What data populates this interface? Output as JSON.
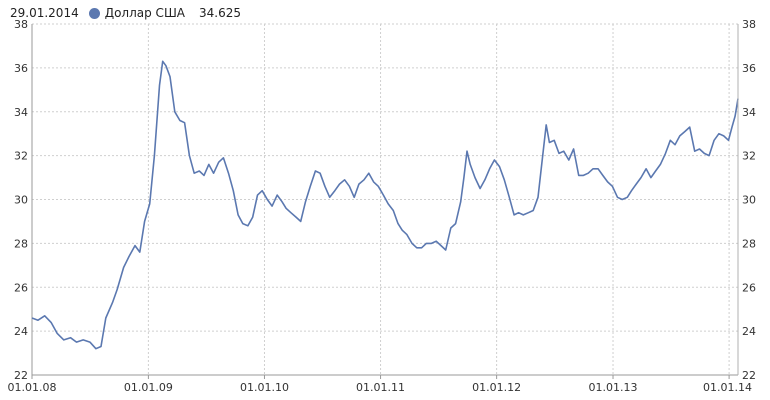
{
  "header": {
    "date": "29.01.2014",
    "series_label": "Доллар США",
    "value": "34.625"
  },
  "colors": {
    "series": "#5b78b0",
    "grid": "#cfcfcf",
    "axis": "#999999",
    "background": "#ffffff"
  },
  "chart_data": {
    "type": "line",
    "title": "",
    "xlabel": "",
    "ylabel": "",
    "ylim": [
      22,
      38
    ],
    "xlim": [
      "2008-01-01",
      "2014-01-29"
    ],
    "y_ticks": [
      "22",
      "24",
      "26",
      "28",
      "30",
      "32",
      "34",
      "36",
      "38"
    ],
    "x_ticks": [
      "01.01.08",
      "01.01.09",
      "01.01.10",
      "01.01.11",
      "01.01.12",
      "01.01.13",
      "01.01.14"
    ],
    "grid": true,
    "series": [
      {
        "name": "Доллар США",
        "points": [
          [
            "2008-01-01",
            24.6
          ],
          [
            "2008-01-20",
            24.5
          ],
          [
            "2008-02-10",
            24.7
          ],
          [
            "2008-03-01",
            24.4
          ],
          [
            "2008-03-20",
            23.9
          ],
          [
            "2008-04-10",
            23.6
          ],
          [
            "2008-05-01",
            23.7
          ],
          [
            "2008-05-20",
            23.5
          ],
          [
            "2008-06-10",
            23.6
          ],
          [
            "2008-07-01",
            23.5
          ],
          [
            "2008-07-20",
            23.2
          ],
          [
            "2008-08-05",
            23.3
          ],
          [
            "2008-08-20",
            24.6
          ],
          [
            "2008-09-10",
            25.3
          ],
          [
            "2008-09-25",
            25.9
          ],
          [
            "2008-10-15",
            26.9
          ],
          [
            "2008-11-01",
            27.4
          ],
          [
            "2008-11-20",
            27.9
          ],
          [
            "2008-12-05",
            27.6
          ],
          [
            "2008-12-20",
            29.0
          ],
          [
            "2009-01-05",
            29.8
          ],
          [
            "2009-01-20",
            32.0
          ],
          [
            "2009-02-05",
            35.2
          ],
          [
            "2009-02-15",
            36.3
          ],
          [
            "2009-02-25",
            36.1
          ],
          [
            "2009-03-10",
            35.6
          ],
          [
            "2009-03-25",
            34.0
          ],
          [
            "2009-04-10",
            33.6
          ],
          [
            "2009-04-25",
            33.5
          ],
          [
            "2009-05-10",
            32.0
          ],
          [
            "2009-05-25",
            31.2
          ],
          [
            "2009-06-10",
            31.3
          ],
          [
            "2009-06-25",
            31.1
          ],
          [
            "2009-07-10",
            31.6
          ],
          [
            "2009-07-25",
            31.2
          ],
          [
            "2009-08-10",
            31.7
          ],
          [
            "2009-08-25",
            31.9
          ],
          [
            "2009-09-10",
            31.2
          ],
          [
            "2009-09-25",
            30.4
          ],
          [
            "2009-10-10",
            29.3
          ],
          [
            "2009-10-25",
            28.9
          ],
          [
            "2009-11-10",
            28.8
          ],
          [
            "2009-11-25",
            29.2
          ],
          [
            "2009-12-10",
            30.2
          ],
          [
            "2009-12-25",
            30.4
          ],
          [
            "2010-01-10",
            30.0
          ],
          [
            "2010-01-25",
            29.7
          ],
          [
            "2010-02-10",
            30.2
          ],
          [
            "2010-02-25",
            29.9
          ],
          [
            "2010-03-10",
            29.6
          ],
          [
            "2010-03-25",
            29.4
          ],
          [
            "2010-04-10",
            29.2
          ],
          [
            "2010-04-25",
            29.0
          ],
          [
            "2010-05-10",
            29.9
          ],
          [
            "2010-05-25",
            30.6
          ],
          [
            "2010-06-10",
            31.3
          ],
          [
            "2010-06-25",
            31.2
          ],
          [
            "2010-07-10",
            30.6
          ],
          [
            "2010-07-25",
            30.1
          ],
          [
            "2010-08-10",
            30.4
          ],
          [
            "2010-08-25",
            30.7
          ],
          [
            "2010-09-10",
            30.9
          ],
          [
            "2010-09-25",
            30.6
          ],
          [
            "2010-10-10",
            30.1
          ],
          [
            "2010-10-25",
            30.7
          ],
          [
            "2010-11-10",
            30.9
          ],
          [
            "2010-11-25",
            31.2
          ],
          [
            "2010-12-10",
            30.8
          ],
          [
            "2010-12-25",
            30.6
          ],
          [
            "2011-01-10",
            30.2
          ],
          [
            "2011-01-25",
            29.8
          ],
          [
            "2011-02-10",
            29.5
          ],
          [
            "2011-02-25",
            28.9
          ],
          [
            "2011-03-10",
            28.6
          ],
          [
            "2011-03-25",
            28.4
          ],
          [
            "2011-04-10",
            28.0
          ],
          [
            "2011-04-25",
            27.8
          ],
          [
            "2011-05-10",
            27.8
          ],
          [
            "2011-05-25",
            28.0
          ],
          [
            "2011-06-10",
            28.0
          ],
          [
            "2011-06-25",
            28.1
          ],
          [
            "2011-07-10",
            27.9
          ],
          [
            "2011-07-25",
            27.7
          ],
          [
            "2011-08-10",
            28.7
          ],
          [
            "2011-08-25",
            28.9
          ],
          [
            "2011-09-10",
            29.9
          ],
          [
            "2011-09-20",
            31.0
          ],
          [
            "2011-09-30",
            32.2
          ],
          [
            "2011-10-10",
            31.6
          ],
          [
            "2011-10-25",
            31.0
          ],
          [
            "2011-11-10",
            30.5
          ],
          [
            "2011-11-25",
            30.9
          ],
          [
            "2011-12-10",
            31.4
          ],
          [
            "2011-12-25",
            31.8
          ],
          [
            "2012-01-10",
            31.5
          ],
          [
            "2012-01-25",
            30.9
          ],
          [
            "2012-02-10",
            30.1
          ],
          [
            "2012-02-25",
            29.3
          ],
          [
            "2012-03-10",
            29.4
          ],
          [
            "2012-03-25",
            29.3
          ],
          [
            "2012-04-10",
            29.4
          ],
          [
            "2012-04-25",
            29.5
          ],
          [
            "2012-05-10",
            30.1
          ],
          [
            "2012-05-25",
            32.0
          ],
          [
            "2012-06-05",
            33.4
          ],
          [
            "2012-06-15",
            32.6
          ],
          [
            "2012-06-30",
            32.7
          ],
          [
            "2012-07-15",
            32.1
          ],
          [
            "2012-07-30",
            32.2
          ],
          [
            "2012-08-15",
            31.8
          ],
          [
            "2012-08-30",
            32.3
          ],
          [
            "2012-09-15",
            31.1
          ],
          [
            "2012-09-30",
            31.1
          ],
          [
            "2012-10-15",
            31.2
          ],
          [
            "2012-10-30",
            31.4
          ],
          [
            "2012-11-15",
            31.4
          ],
          [
            "2012-11-30",
            31.1
          ],
          [
            "2012-12-15",
            30.8
          ],
          [
            "2012-12-30",
            30.6
          ],
          [
            "2013-01-15",
            30.1
          ],
          [
            "2013-01-30",
            30.0
          ],
          [
            "2013-02-15",
            30.1
          ],
          [
            "2013-02-28",
            30.4
          ],
          [
            "2013-03-15",
            30.7
          ],
          [
            "2013-03-30",
            31.0
          ],
          [
            "2013-04-15",
            31.4
          ],
          [
            "2013-04-30",
            31.0
          ],
          [
            "2013-05-15",
            31.3
          ],
          [
            "2013-05-30",
            31.6
          ],
          [
            "2013-06-15",
            32.1
          ],
          [
            "2013-06-30",
            32.7
          ],
          [
            "2013-07-15",
            32.5
          ],
          [
            "2013-07-30",
            32.9
          ],
          [
            "2013-08-15",
            33.1
          ],
          [
            "2013-08-30",
            33.3
          ],
          [
            "2013-09-15",
            32.2
          ],
          [
            "2013-09-30",
            32.3
          ],
          [
            "2013-10-15",
            32.1
          ],
          [
            "2013-10-30",
            32.0
          ],
          [
            "2013-11-15",
            32.7
          ],
          [
            "2013-11-30",
            33.0
          ],
          [
            "2013-12-15",
            32.9
          ],
          [
            "2013-12-30",
            32.7
          ],
          [
            "2014-01-10",
            33.3
          ],
          [
            "2014-01-20",
            33.8
          ],
          [
            "2014-01-29",
            34.6
          ]
        ]
      }
    ]
  }
}
